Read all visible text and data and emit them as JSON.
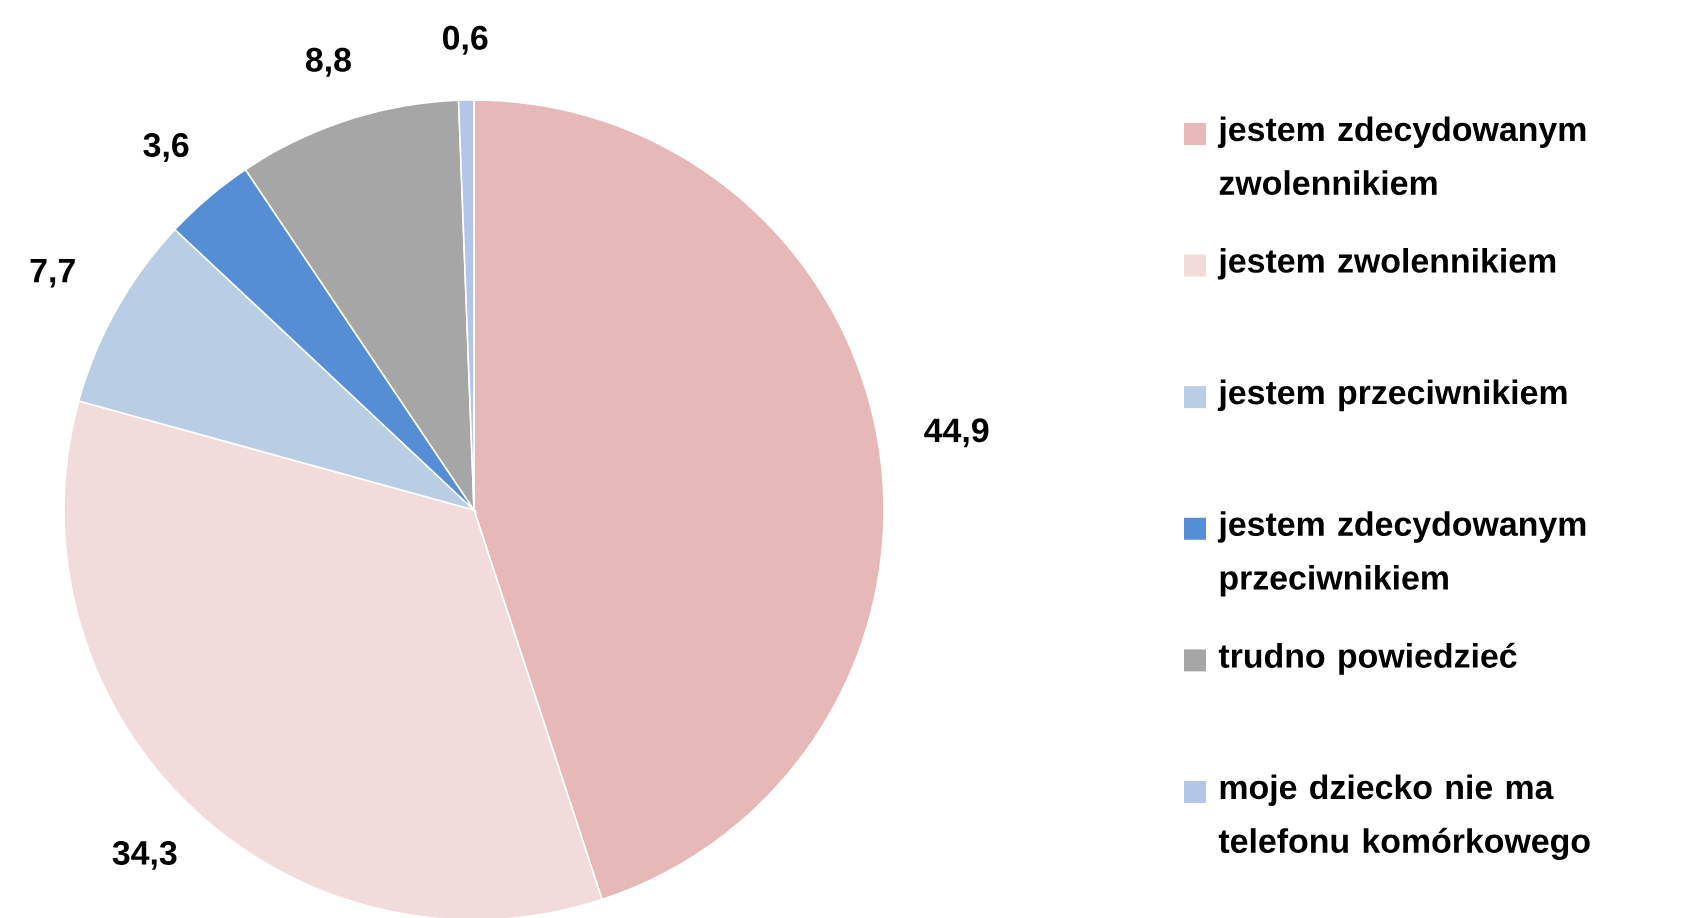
{
  "chart_data": {
    "type": "pie",
    "categories": [
      "jestem zdecydowanym zwolennikiem",
      "jestem zwolennikiem",
      "jestem przeciwnikiem",
      "jestem zdecydowanym przeciwnikiem",
      "trudno powiedzieć",
      "moje dziecko nie ma telefonu komórkowego"
    ],
    "values": [
      44.9,
      34.3,
      7.7,
      3.6,
      8.8,
      0.6
    ],
    "colors": [
      "#e6b8b7",
      "#f2dcdb",
      "#b9cde5",
      "#558ed5",
      "#a6a6a6",
      "#b3c6e7"
    ],
    "value_labels": [
      "44,9",
      "34,3",
      "7,7",
      "3,6",
      "8,8",
      "0,6"
    ],
    "legend": "right"
  }
}
